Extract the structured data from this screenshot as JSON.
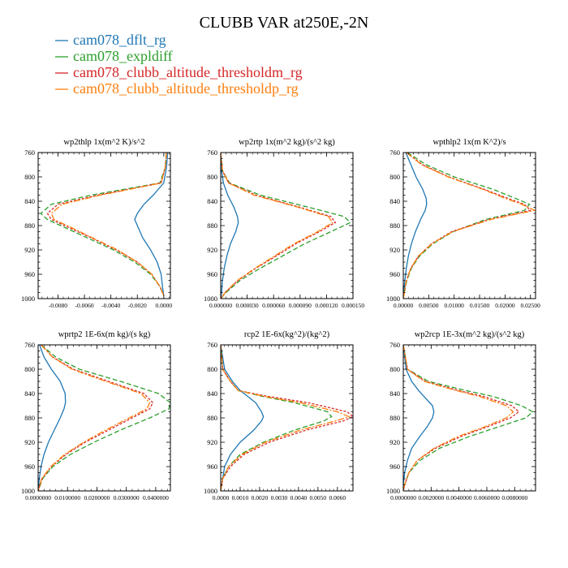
{
  "figure": {
    "title": "CLUBB VAR at250E,-2N",
    "legend": [
      {
        "label": "cam078_dflt_rg",
        "color": "#1f77b4"
      },
      {
        "label": "cam078_expldiff",
        "color": "#2ca02c"
      },
      {
        "label": "cam078_clubb_altitude_thresholdm_rg",
        "color": "#d62728"
      },
      {
        "label": "cam078_clubb_altitude_thresholdp_rg",
        "color": "#ff7f0e"
      }
    ]
  },
  "chart_data": [
    {
      "type": "line",
      "title": "wp2thlp   1x(m^2 K)/s^2",
      "xlim": [
        -0.0095,
        0.0005
      ],
      "ylim": [
        760,
        1000
      ],
      "y_inverted": true,
      "yticks": [
        "760",
        "800",
        "840",
        "880",
        "920",
        "960",
        "1000"
      ],
      "xticks": [
        {
          "v": -0.008,
          "label": "-0.0080"
        },
        {
          "v": -0.006,
          "label": "-0.0060"
        },
        {
          "v": -0.004,
          "label": "-0.0040"
        },
        {
          "v": -0.002,
          "label": "-0.0020"
        },
        {
          "v": 0.0,
          "label": "0.0000"
        }
      ],
      "y": [
        760,
        785,
        810,
        830,
        845,
        860,
        870,
        880,
        900,
        920,
        940,
        960,
        980,
        995
      ],
      "series": [
        {
          "name": "cam078_dflt_rg",
          "x": [
            0.0003,
            0.0002,
            0.0,
            -0.0008,
            -0.0015,
            -0.002,
            -0.0022,
            -0.002,
            -0.0016,
            -0.001,
            -0.0005,
            -0.0002,
            -0.0001,
            0.0
          ]
        },
        {
          "name": "cam078_expldiff",
          "x": [
            0.0002,
            0.0001,
            -0.0003,
            -0.0055,
            -0.0085,
            -0.0093,
            -0.0088,
            -0.0078,
            -0.0058,
            -0.0038,
            -0.0022,
            -0.001,
            -0.0003,
            0.0
          ]
        },
        {
          "name": "cam078_clubb_altitude_thresholdm_rg",
          "x": [
            0.0002,
            0.0001,
            -0.0002,
            -0.005,
            -0.008,
            -0.0088,
            -0.0085,
            -0.0075,
            -0.0055,
            -0.0036,
            -0.002,
            -0.0009,
            -0.0003,
            0.0
          ]
        },
        {
          "name": "cam078_clubb_altitude_thresholdp_rg",
          "x": [
            0.0002,
            0.0001,
            -0.0002,
            -0.0048,
            -0.0077,
            -0.0085,
            -0.0083,
            -0.0073,
            -0.0054,
            -0.0035,
            -0.002,
            -0.0009,
            -0.0003,
            0.0
          ]
        }
      ]
    },
    {
      "type": "line",
      "title": "wp2rtp   1x(m^2 kg)/(s^2 kg)",
      "xlim": [
        0.0,
        0.00015
      ],
      "ylim": [
        760,
        1000
      ],
      "y_inverted": true,
      "yticks": [
        "760",
        "800",
        "840",
        "880",
        "920",
        "960",
        "1000"
      ],
      "xticks": [
        {
          "v": 0.0,
          "label": "0.000000"
        },
        {
          "v": 3e-05,
          "label": "0.000030"
        },
        {
          "v": 6e-05,
          "label": "0.000060"
        },
        {
          "v": 9e-05,
          "label": "0.000090"
        },
        {
          "v": 0.00012,
          "label": "0.000120"
        },
        {
          "v": 0.00015,
          "label": "0.000150"
        }
      ],
      "y": [
        760,
        790,
        810,
        830,
        850,
        865,
        875,
        890,
        910,
        930,
        950,
        970,
        990,
        1000
      ],
      "series": [
        {
          "name": "cam078_dflt_rg",
          "x": [
            0.0,
            1e-06,
            3e-06,
            8e-06,
            1.5e-05,
            1.9e-05,
            2e-05,
            1.7e-05,
            1.1e-05,
            7e-06,
            4e-06,
            2e-06,
            1e-06,
            0.0
          ]
        },
        {
          "name": "cam078_expldiff",
          "x": [
            0.0,
            2e-06,
            1e-05,
            4.5e-05,
            0.0001,
            0.00014,
            0.000147,
            0.000125,
            9.5e-05,
            7e-05,
            4.5e-05,
            2.2e-05,
            6e-06,
            0.0
          ]
        },
        {
          "name": "cam078_clubb_altitude_thresholdm_rg",
          "x": [
            0.0,
            2e-06,
            9e-06,
            4e-05,
            9e-05,
            0.000125,
            0.00013,
            0.000112,
            8.5e-05,
            6.3e-05,
            4e-05,
            2e-05,
            5e-06,
            0.0
          ]
        },
        {
          "name": "cam078_clubb_altitude_thresholdp_rg",
          "x": [
            0.0,
            2e-06,
            9e-06,
            3.8e-05,
            8.8e-05,
            0.000122,
            0.000127,
            0.00011,
            8.3e-05,
            6.1e-05,
            3.9e-05,
            1.9e-05,
            5e-06,
            0.0
          ]
        }
      ]
    },
    {
      "type": "line",
      "title": "wpthlp2   1x(m K^2)/s",
      "xlim": [
        0.0,
        0.026
      ],
      "ylim": [
        760,
        1000
      ],
      "y_inverted": true,
      "yticks": [
        "760",
        "800",
        "840",
        "880",
        "920",
        "960",
        "1000"
      ],
      "xticks": [
        {
          "v": 0.0,
          "label": "0.00000"
        },
        {
          "v": 0.005,
          "label": "0.00500"
        },
        {
          "v": 0.01,
          "label": "0.01000"
        },
        {
          "v": 0.015,
          "label": "0.01500"
        },
        {
          "v": 0.02,
          "label": "0.02000"
        },
        {
          "v": 0.025,
          "label": "0.02500"
        }
      ],
      "y": [
        760,
        780,
        800,
        820,
        835,
        845,
        855,
        870,
        890,
        910,
        930,
        950,
        970,
        990,
        1000
      ],
      "series": [
        {
          "name": "cam078_dflt_rg",
          "x": [
            0.0005,
            0.0015,
            0.0025,
            0.0038,
            0.0045,
            0.0046,
            0.0043,
            0.0034,
            0.0024,
            0.0016,
            0.001,
            0.0006,
            0.0003,
            0.0001,
            0.0
          ]
        },
        {
          "name": "cam078_expldiff",
          "x": [
            0.0008,
            0.0045,
            0.01,
            0.0175,
            0.022,
            0.0248,
            0.0238,
            0.0162,
            0.0098,
            0.0058,
            0.0032,
            0.0016,
            0.0007,
            0.0002,
            0.0
          ]
        },
        {
          "name": "cam078_clubb_altitude_thresholdm_rg",
          "x": [
            0.0006,
            0.0038,
            0.009,
            0.0158,
            0.0205,
            0.0238,
            0.025,
            0.0168,
            0.0095,
            0.0055,
            0.003,
            0.0015,
            0.0006,
            0.0002,
            0.0
          ]
        },
        {
          "name": "cam078_clubb_altitude_thresholdp_rg",
          "x": [
            0.0006,
            0.0036,
            0.0088,
            0.0155,
            0.02,
            0.0233,
            0.0258,
            0.0172,
            0.0097,
            0.0056,
            0.003,
            0.0015,
            0.0006,
            0.0002,
            0.0
          ]
        }
      ]
    },
    {
      "type": "line",
      "title": "wprtp2   1E-6x(m kg)/(s kg)",
      "xlim": [
        0.0,
        0.045
      ],
      "ylim": [
        760,
        1000
      ],
      "y_inverted": true,
      "yticks": [
        "760",
        "800",
        "840",
        "880",
        "920",
        "960",
        "1000"
      ],
      "xticks": [
        {
          "v": 0.0,
          "label": "0.0000000"
        },
        {
          "v": 0.01,
          "label": "0.0100000"
        },
        {
          "v": 0.02,
          "label": "0.0200000"
        },
        {
          "v": 0.03,
          "label": "0.0300000"
        },
        {
          "v": 0.04,
          "label": "0.0400000"
        }
      ],
      "y": [
        760,
        780,
        800,
        820,
        840,
        855,
        865,
        880,
        900,
        920,
        940,
        960,
        980,
        1000
      ],
      "series": [
        {
          "name": "cam078_dflt_rg",
          "x": [
            0.0005,
            0.002,
            0.0045,
            0.0075,
            0.0092,
            0.0093,
            0.0088,
            0.0075,
            0.0055,
            0.0035,
            0.002,
            0.001,
            0.0004,
            0.0
          ]
        },
        {
          "name": "cam078_expldiff",
          "x": [
            0.001,
            0.006,
            0.014,
            0.028,
            0.041,
            0.045,
            0.0445,
            0.038,
            0.028,
            0.019,
            0.011,
            0.005,
            0.0015,
            0.0
          ]
        },
        {
          "name": "cam078_clubb_altitude_thresholdm_rg",
          "x": [
            0.001,
            0.005,
            0.012,
            0.024,
            0.036,
            0.039,
            0.038,
            0.032,
            0.024,
            0.016,
            0.0095,
            0.0045,
            0.0013,
            0.0
          ]
        },
        {
          "name": "cam078_clubb_altitude_thresholdp_rg",
          "x": [
            0.001,
            0.0048,
            0.0115,
            0.023,
            0.035,
            0.038,
            0.037,
            0.031,
            0.023,
            0.0155,
            0.009,
            0.0043,
            0.0012,
            0.0
          ]
        }
      ]
    },
    {
      "type": "line",
      "title": "rcp2   1E-6x(kg^2)/(kg^2)",
      "xlim": [
        0.0,
        0.0068
      ],
      "ylim": [
        760,
        1000
      ],
      "y_inverted": true,
      "yticks": [
        "760",
        "800",
        "840",
        "880",
        "920",
        "960",
        "1000"
      ],
      "xticks": [
        {
          "v": 0.0,
          "label": "0.0000"
        },
        {
          "v": 0.001,
          "label": "0.0010"
        },
        {
          "v": 0.002,
          "label": "0.0020"
        },
        {
          "v": 0.003,
          "label": "0.0030"
        },
        {
          "v": 0.004,
          "label": "0.0040"
        },
        {
          "v": 0.005,
          "label": "0.0050"
        },
        {
          "v": 0.006,
          "label": "0.0060"
        }
      ],
      "y": [
        760,
        800,
        820,
        835,
        845,
        855,
        870,
        878,
        885,
        900,
        920,
        940,
        960,
        980,
        1000
      ],
      "series": [
        {
          "name": "cam078_dflt_rg",
          "x": [
            0.0,
            0.0002,
            0.0006,
            0.001,
            0.0014,
            0.0018,
            0.0021,
            0.0022,
            0.0021,
            0.0017,
            0.001,
            0.0005,
            0.0002,
            0.0001,
            0.0
          ]
        },
        {
          "name": "cam078_expldiff",
          "x": [
            0.0,
            0.0001,
            0.0005,
            0.0009,
            0.0022,
            0.0038,
            0.0055,
            0.0057,
            0.0053,
            0.0038,
            0.0022,
            0.001,
            0.0004,
            0.0001,
            0.0
          ]
        },
        {
          "name": "cam078_clubb_altitude_thresholdm_rg",
          "x": [
            0.0,
            0.0001,
            0.0005,
            0.0009,
            0.0025,
            0.0045,
            0.0065,
            0.0068,
            0.0063,
            0.0044,
            0.0025,
            0.0012,
            0.0005,
            0.0001,
            0.0
          ]
        },
        {
          "name": "cam078_clubb_altitude_thresholdp_rg",
          "x": [
            0.0,
            0.0001,
            0.0005,
            0.0009,
            0.0023,
            0.0041,
            0.006,
            0.0066,
            0.0059,
            0.0041,
            0.0023,
            0.0011,
            0.0004,
            0.0001,
            0.0
          ]
        }
      ]
    },
    {
      "type": "line",
      "title": "wp2rcp   1E-3x(m^2 kg)/(s^2 kg)",
      "xlim": [
        0.0,
        0.0095
      ],
      "ylim": [
        760,
        1000
      ],
      "y_inverted": true,
      "yticks": [
        "760",
        "800",
        "840",
        "880",
        "920",
        "960",
        "1000"
      ],
      "xticks": [
        {
          "v": 0.0,
          "label": "0.0000000"
        },
        {
          "v": 0.002,
          "label": "0.0020000"
        },
        {
          "v": 0.004,
          "label": "0.0040000"
        },
        {
          "v": 0.006,
          "label": "0.0060000"
        },
        {
          "v": 0.008,
          "label": "0.0080000"
        }
      ],
      "y": [
        760,
        800,
        820,
        835,
        845,
        860,
        870,
        880,
        895,
        910,
        930,
        950,
        970,
        990,
        1000
      ],
      "series": [
        {
          "name": "cam078_dflt_rg",
          "x": [
            0.0,
            0.0002,
            0.0006,
            0.0011,
            0.0015,
            0.0021,
            0.0022,
            0.0021,
            0.0017,
            0.0012,
            0.0006,
            0.0003,
            0.0001,
            0.0,
            0.0
          ]
        },
        {
          "name": "cam078_expldiff",
          "x": [
            0.0,
            0.0003,
            0.0018,
            0.0045,
            0.0065,
            0.0085,
            0.0093,
            0.0088,
            0.0068,
            0.0048,
            0.0026,
            0.0012,
            0.0004,
            0.0001,
            0.0
          ]
        },
        {
          "name": "cam078_clubb_altitude_thresholdm_rg",
          "x": [
            0.0,
            0.0003,
            0.0016,
            0.004,
            0.0058,
            0.0078,
            0.0083,
            0.0077,
            0.006,
            0.0042,
            0.0023,
            0.001,
            0.0004,
            0.0001,
            0.0
          ]
        },
        {
          "name": "cam078_clubb_altitude_thresholdp_rg",
          "x": [
            0.0,
            0.0003,
            0.0015,
            0.0038,
            0.0055,
            0.0074,
            0.0079,
            0.0074,
            0.0058,
            0.004,
            0.0022,
            0.001,
            0.0004,
            0.0001,
            0.0
          ]
        }
      ]
    }
  ]
}
